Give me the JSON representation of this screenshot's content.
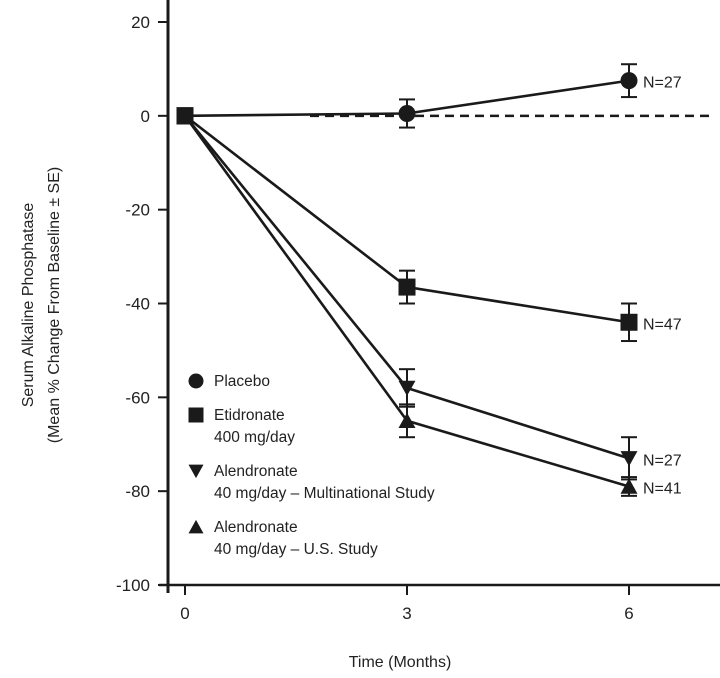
{
  "chart_data": {
    "type": "line",
    "title": "",
    "xlabel": "Time (Months)",
    "ylabel_lines": [
      "Serum Alkaline Phosphatase",
      "(Mean % Change From Baseline ± SE)"
    ],
    "x_ticks": [
      0,
      3,
      6
    ],
    "y_ticks": [
      20,
      0,
      -20,
      -40,
      -60,
      -80,
      -100
    ],
    "xlim": [
      -0.2,
      7
    ],
    "ylim": [
      -100,
      20
    ],
    "reference_line": {
      "y": 0,
      "style": "dashed"
    },
    "grid": false,
    "legend_position": "bottom-left",
    "series": [
      {
        "name": "Placebo",
        "marker": "circle",
        "x": [
          0,
          3,
          6
        ],
        "y": [
          0,
          0.5,
          7.5
        ],
        "se": [
          0,
          3,
          3.5
        ],
        "n_label": "N=27"
      },
      {
        "name": "Etidronate 400 mg/day",
        "marker": "square",
        "x": [
          0,
          3,
          6
        ],
        "y": [
          0,
          -36.5,
          -44
        ],
        "se": [
          0,
          3.5,
          4
        ],
        "n_label": "N=47"
      },
      {
        "name": "Alendronate 40 mg/day – Multinational Study",
        "marker": "triangle-down",
        "x": [
          0,
          3,
          6
        ],
        "y": [
          0,
          -58,
          -73
        ],
        "se": [
          0,
          4,
          4.5
        ],
        "n_label": "N=27"
      },
      {
        "name": "Alendronate 40 mg/day – U.S. Study",
        "marker": "triangle-up",
        "x": [
          0,
          3,
          6
        ],
        "y": [
          0,
          -65,
          -79
        ],
        "se": [
          0,
          3.5,
          2
        ],
        "n_label": "N=41"
      }
    ],
    "legend": [
      {
        "marker": "circle",
        "lines": [
          "Placebo"
        ]
      },
      {
        "marker": "square",
        "lines": [
          "Etidronate",
          "400 mg/day"
        ]
      },
      {
        "marker": "triangle-down",
        "lines": [
          "Alendronate",
          "40 mg/day – Multinational Study"
        ]
      },
      {
        "marker": "triangle-up",
        "lines": [
          "Alendronate",
          "40 mg/day – U.S. Study"
        ]
      }
    ]
  }
}
